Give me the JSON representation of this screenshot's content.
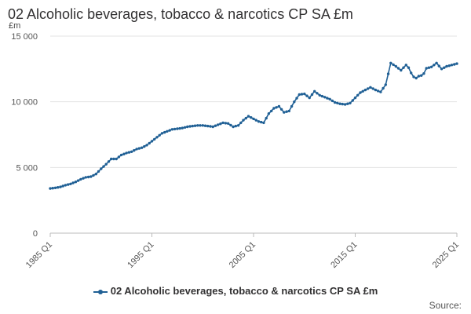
{
  "chart_data": {
    "type": "line",
    "title": "02 Alcoholic beverages, tobacco & narcotics CP SA £m",
    "ylabel": "£m",
    "xlabel": "",
    "ylim": [
      0,
      15000
    ],
    "y_ticks": [
      0,
      5000,
      10000,
      15000
    ],
    "y_tick_labels": [
      "0",
      "5 000",
      "10 000",
      "15 000"
    ],
    "x_tick_labels": [
      "1985 Q1",
      "1995 Q1",
      "2005 Q1",
      "2015 Q1",
      "2025 Q1"
    ],
    "x_tick_years": [
      1985,
      1995,
      2005,
      2015,
      2025
    ],
    "grid": true,
    "legend_position": "bottom",
    "series": [
      {
        "name": "02 Alcoholic beverages, tobacco & narcotics CP SA £m",
        "color": "#206095",
        "x": [
          1985.0,
          1985.5,
          1986.0,
          1986.5,
          1987.0,
          1987.5,
          1988.0,
          1988.5,
          1989.0,
          1989.5,
          1990.0,
          1990.5,
          1991.0,
          1991.5,
          1992.0,
          1992.5,
          1993.0,
          1993.5,
          1994.0,
          1994.5,
          1995.0,
          1995.5,
          1996.0,
          1996.5,
          1997.0,
          1997.5,
          1998.0,
          1998.5,
          1999.0,
          1999.5,
          2000.0,
          2000.5,
          2001.0,
          2001.5,
          2002.0,
          2002.5,
          2003.0,
          2003.5,
          2004.0,
          2004.5,
          2005.0,
          2005.5,
          2006.0,
          2006.5,
          2007.0,
          2007.5,
          2008.0,
          2008.5,
          2009.0,
          2009.5,
          2010.0,
          2010.5,
          2011.0,
          2011.5,
          2012.0,
          2012.5,
          2013.0,
          2013.5,
          2014.0,
          2014.5,
          2015.0,
          2015.5,
          2016.0,
          2016.5,
          2017.0,
          2017.5,
          2018.0,
          2018.5,
          2019.0,
          2019.5,
          2020.0,
          2020.25,
          2020.5,
          2020.75,
          2021.0,
          2021.25,
          2021.5,
          2021.75,
          2022.0,
          2022.5,
          2023.0,
          2023.5,
          2024.0,
          2024.5,
          2025.0
        ],
        "values": [
          3400,
          3450,
          3520,
          3650,
          3750,
          3900,
          4100,
          4250,
          4300,
          4500,
          4900,
          5250,
          5650,
          5650,
          5950,
          6100,
          6200,
          6400,
          6500,
          6700,
          7000,
          7300,
          7600,
          7750,
          7900,
          7950,
          8000,
          8100,
          8150,
          8200,
          8200,
          8150,
          8100,
          8250,
          8400,
          8350,
          8100,
          8200,
          8600,
          8900,
          8700,
          8500,
          8400,
          9100,
          9500,
          9650,
          9200,
          9300,
          10000,
          10550,
          10600,
          10300,
          10800,
          10500,
          10350,
          10200,
          9950,
          9850,
          9800,
          9900,
          10300,
          10700,
          10900,
          11100,
          10900,
          10750,
          11300,
          12950,
          12700,
          12400,
          12800,
          12600,
          12200,
          11900,
          11800,
          11950,
          12000,
          12150,
          12550,
          12650,
          12950,
          12500,
          12700,
          12800,
          12900
        ]
      }
    ]
  },
  "source_label": "Source:"
}
